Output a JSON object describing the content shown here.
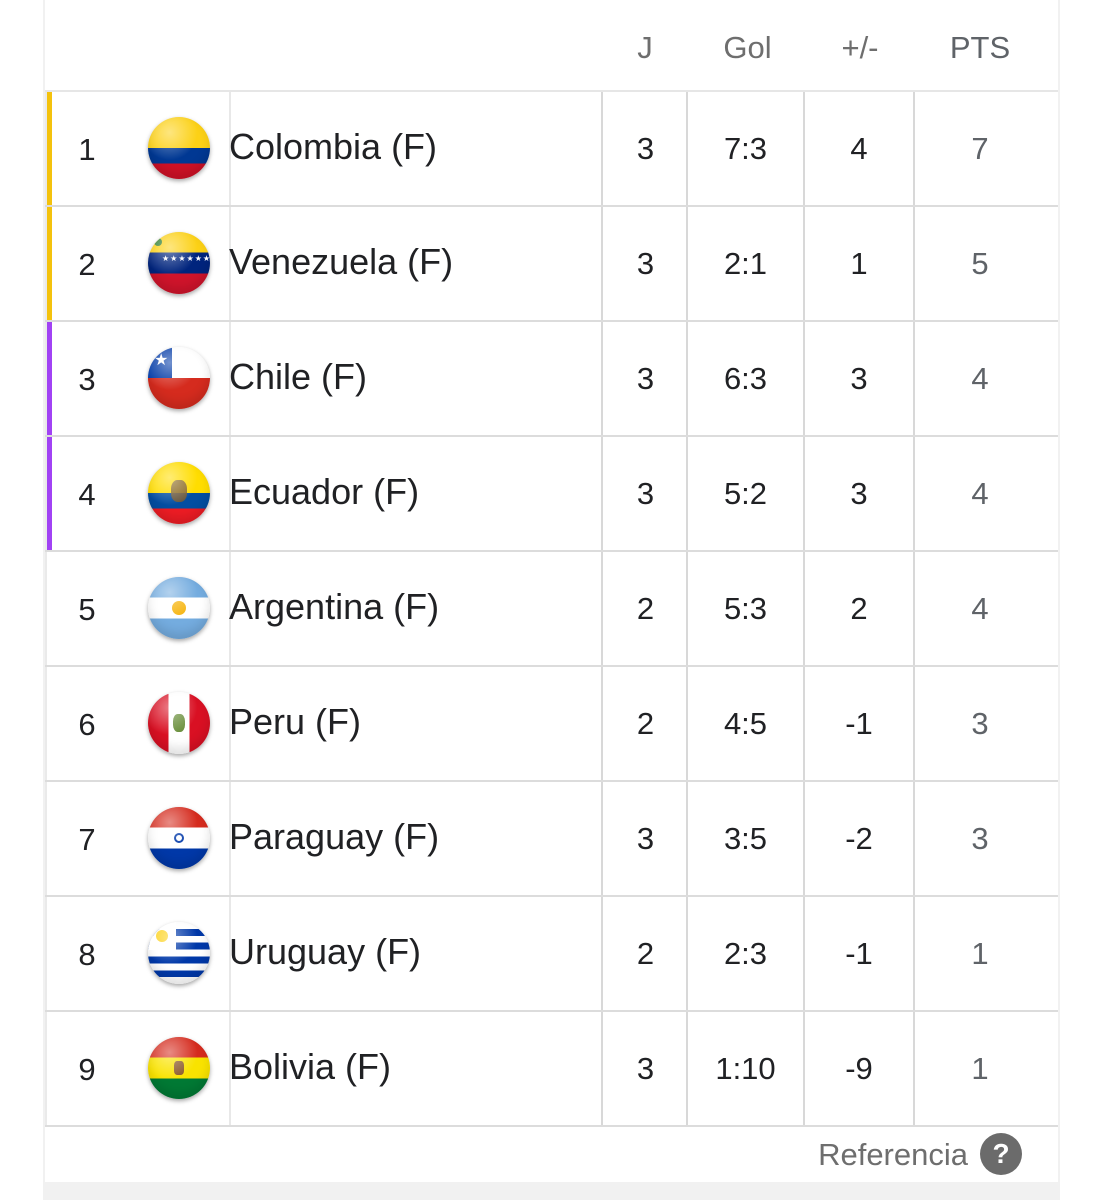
{
  "header": {
    "col_j": "J",
    "col_gol": "Gol",
    "col_dif": "+/-",
    "col_pts": "PTS"
  },
  "accent_colors": {
    "yellow": "#f4c20d",
    "purple": "#a142f4"
  },
  "rows": [
    {
      "rank": "1",
      "team": "Colombia (F)",
      "flag": "colombia-flag-icon",
      "j": "3",
      "gol": "7:3",
      "dif": "4",
      "pts": "7",
      "accent": "yellow"
    },
    {
      "rank": "2",
      "team": "Venezuela (F)",
      "flag": "venezuela-flag-icon",
      "j": "3",
      "gol": "2:1",
      "dif": "1",
      "pts": "5",
      "accent": "yellow"
    },
    {
      "rank": "3",
      "team": "Chile (F)",
      "flag": "chile-flag-icon",
      "j": "3",
      "gol": "6:3",
      "dif": "3",
      "pts": "4",
      "accent": "purple"
    },
    {
      "rank": "4",
      "team": "Ecuador (F)",
      "flag": "ecuador-flag-icon",
      "j": "3",
      "gol": "5:2",
      "dif": "3",
      "pts": "4",
      "accent": "purple"
    },
    {
      "rank": "5",
      "team": "Argentina (F)",
      "flag": "argentina-flag-icon",
      "j": "2",
      "gol": "5:3",
      "dif": "2",
      "pts": "4",
      "accent": ""
    },
    {
      "rank": "6",
      "team": "Peru (F)",
      "flag": "peru-flag-icon",
      "j": "2",
      "gol": "4:5",
      "dif": "-1",
      "pts": "3",
      "accent": ""
    },
    {
      "rank": "7",
      "team": "Paraguay (F)",
      "flag": "paraguay-flag-icon",
      "j": "3",
      "gol": "3:5",
      "dif": "-2",
      "pts": "3",
      "accent": ""
    },
    {
      "rank": "8",
      "team": "Uruguay (F)",
      "flag": "uruguay-flag-icon",
      "j": "2",
      "gol": "2:3",
      "dif": "-1",
      "pts": "1",
      "accent": ""
    },
    {
      "rank": "9",
      "team": "Bolivia (F)",
      "flag": "bolivia-flag-icon",
      "j": "3",
      "gol": "1:10",
      "dif": "-9",
      "pts": "1",
      "accent": ""
    }
  ],
  "footer": {
    "reference_label": "Referencia",
    "help_glyph": "?"
  }
}
